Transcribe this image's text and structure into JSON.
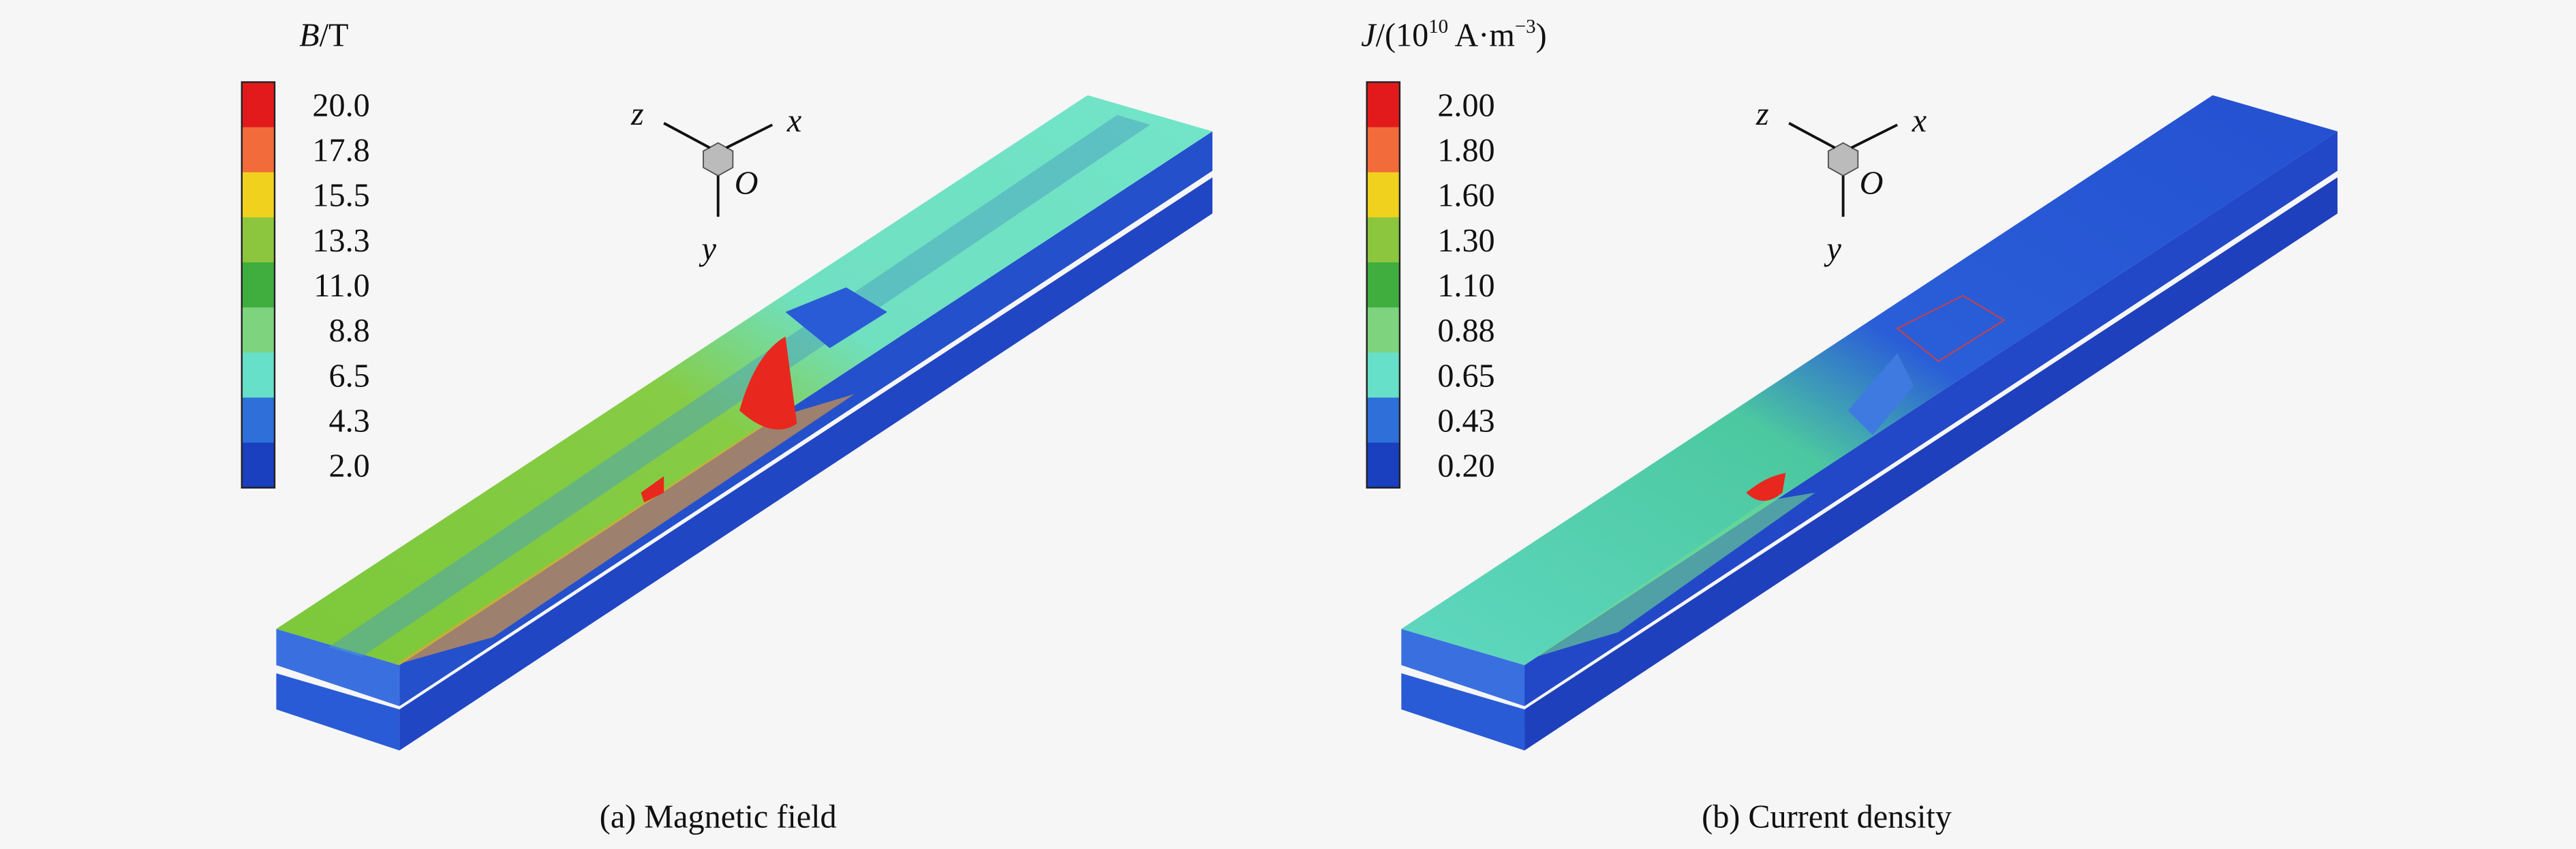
{
  "panels": [
    {
      "colorbar": {
        "title": {
          "symbol": "B",
          "unit": "/T"
        },
        "labels": [
          "20.0",
          "17.8",
          "15.5",
          "13.3",
          "11.0",
          "8.8",
          "6.5",
          "4.3",
          "2.0"
        ]
      },
      "axes": {
        "z": "z",
        "x": "x",
        "origin": "O",
        "y": "y"
      },
      "caption": "(a) Magnetic field"
    },
    {
      "colorbar": {
        "title": {
          "symbol": "J",
          "prefix": "/(10",
          "exponent": "10",
          "unit": " A·m",
          "unit_exponent": "−3",
          "close": ")"
        },
        "labels": [
          "2.00",
          "1.80",
          "1.60",
          "1.30",
          "1.10",
          "0.88",
          "0.65",
          "0.43",
          "0.20"
        ]
      },
      "axes": {
        "z": "z",
        "x": "x",
        "origin": "O",
        "y": "y"
      },
      "caption": "(b) Current density"
    }
  ]
}
